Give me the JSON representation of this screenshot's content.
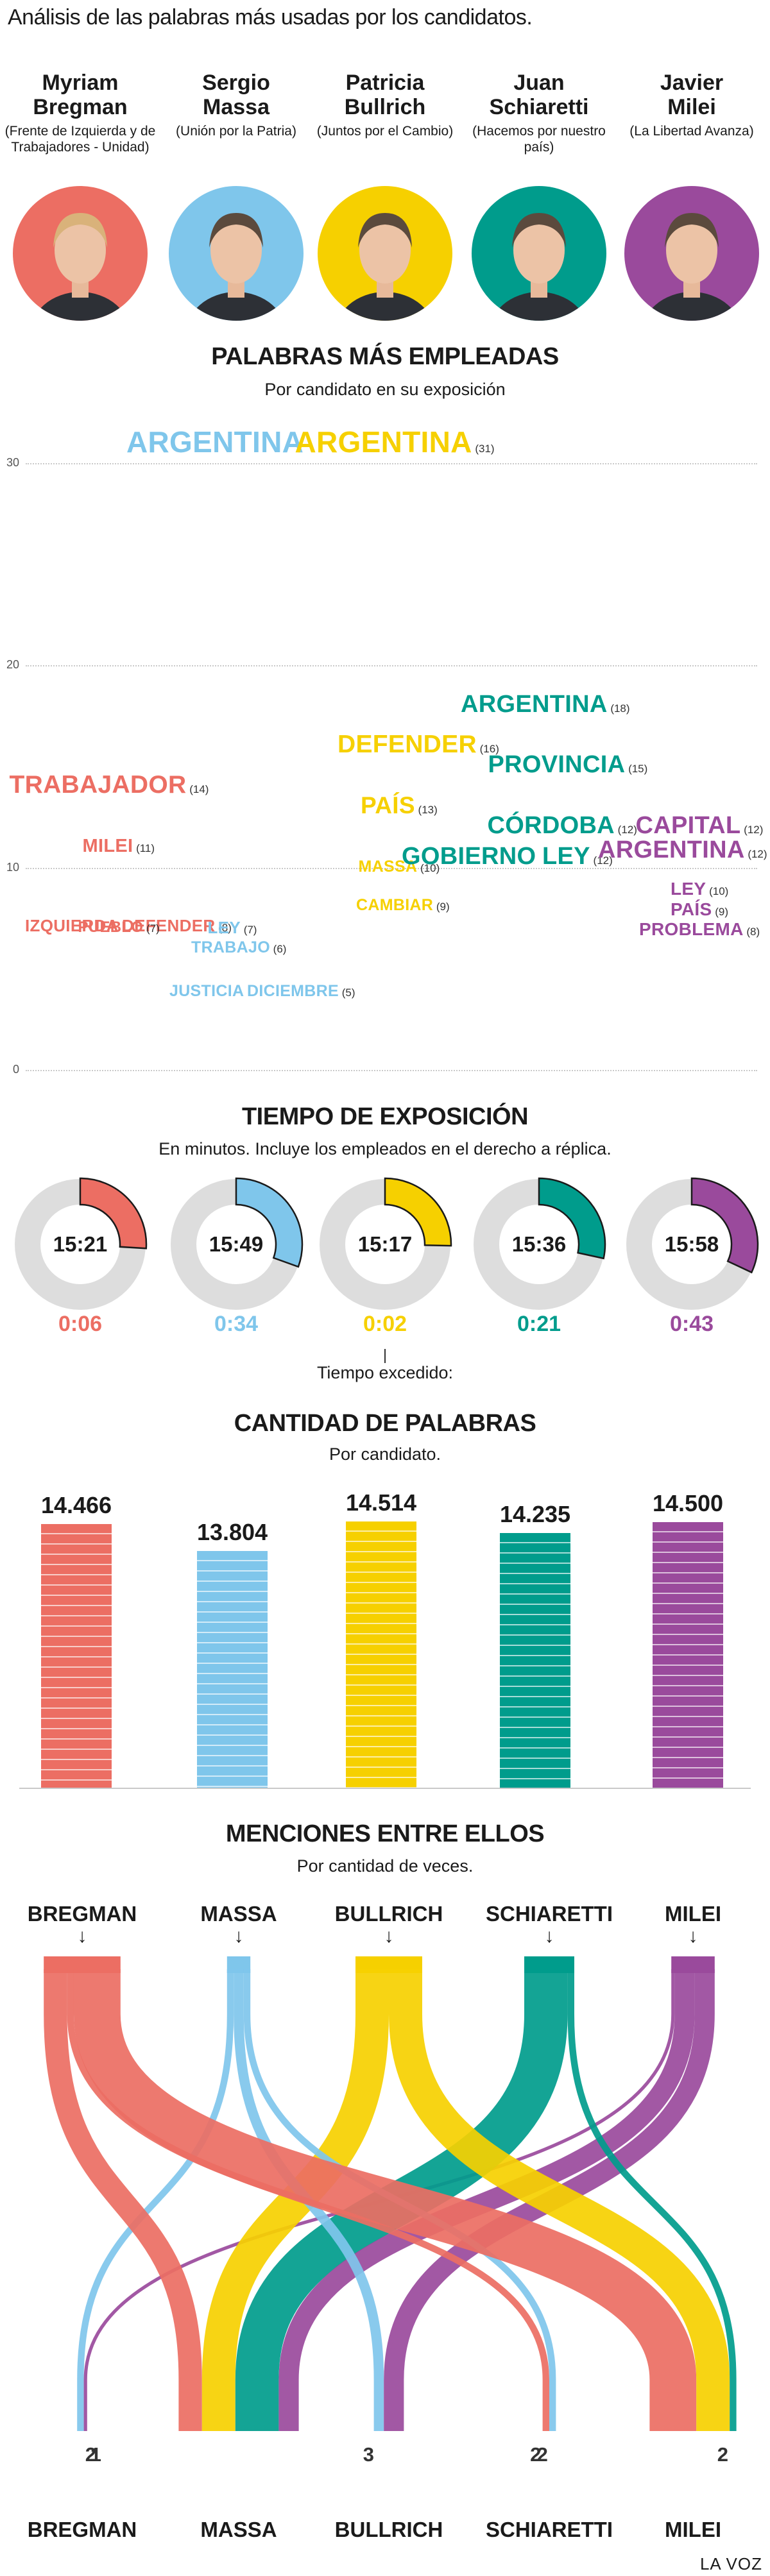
{
  "intro": "Análisis de las palabras más usadas por los candidatos.",
  "candidates": [
    {
      "key": "bregman",
      "name_line1": "Myriam",
      "name_line2": "Bregman",
      "party": "(Frente de Izquierda y de Trabajadores - Unidad)",
      "color": "#ec6e63"
    },
    {
      "key": "massa",
      "name_line1": "Sergio",
      "name_line2": "Massa",
      "party": "(Unión por la Patria)",
      "color": "#7fc6eb"
    },
    {
      "key": "bullrich",
      "name_line1": "Patricia",
      "name_line2": "Bullrich",
      "party": "(Juntos por el Cambio)",
      "color": "#f6d000"
    },
    {
      "key": "schiaretti",
      "name_line1": "Juan",
      "name_line2": "Schiaretti",
      "party": "(Hacemos por nuestro país)",
      "color": "#009c8c"
    },
    {
      "key": "milei",
      "name_line1": "Javier",
      "name_line2": "Milei",
      "party": "(La Libertad Avanza)",
      "color": "#9a4a9c"
    }
  ],
  "words_section": {
    "title": "PALABRAS MÁS EMPLEADAS",
    "subtitle": "Por candidato en su exposición",
    "axis_ticks": [
      "0",
      "10",
      "20",
      "30"
    ]
  },
  "chart_data": [
    {
      "type": "scatter",
      "title": "PALABRAS MÁS EMPLEADAS",
      "subtitle": "Por candidato en su exposición",
      "ylim": [
        0,
        30
      ],
      "yticks": [
        0,
        10,
        20,
        30
      ],
      "series": [
        {
          "name": "Bregman",
          "points": [
            {
              "word": "TRABAJADOR",
              "count": 14
            },
            {
              "word": "MILEI",
              "count": 11
            },
            {
              "word": "IZQUIERDA",
              "count": 8
            },
            {
              "word": "DEFENDER",
              "count": 8
            },
            {
              "word": "PUEBLO",
              "count": 7
            }
          ]
        },
        {
          "name": "Massa",
          "points": [
            {
              "word": "ARGENTINA",
              "count": 31
            },
            {
              "word": "LEY",
              "count": 7
            },
            {
              "word": "TRABAJO",
              "count": 6
            },
            {
              "word": "JUSTICIA",
              "count": 5
            },
            {
              "word": "DICIEMBRE",
              "count": 5
            }
          ]
        },
        {
          "name": "Bullrich",
          "points": [
            {
              "word": "ARGENTINA",
              "count": 31
            },
            {
              "word": "DEFENDER",
              "count": 16
            },
            {
              "word": "PAÍS",
              "count": 13
            },
            {
              "word": "MASSA",
              "count": 10
            },
            {
              "word": "CAMBIAR",
              "count": 9
            }
          ]
        },
        {
          "name": "Schiaretti",
          "points": [
            {
              "word": "ARGENTINA",
              "count": 18
            },
            {
              "word": "PROVINCIA",
              "count": 15
            },
            {
              "word": "CÓRDOBA",
              "count": 12
            },
            {
              "word": "GOBIERNO",
              "count": 12
            },
            {
              "word": "LEY",
              "count": 12
            }
          ]
        },
        {
          "name": "Milei",
          "points": [
            {
              "word": "CAPITAL",
              "count": 12
            },
            {
              "word": "ARGENTINA",
              "count": 12
            },
            {
              "word": "LEY",
              "count": 10
            },
            {
              "word": "PAÍS",
              "count": 9
            },
            {
              "word": "PROBLEMA",
              "count": 8
            }
          ]
        }
      ]
    },
    {
      "type": "pie",
      "title": "TIEMPO DE EXPOSICIÓN",
      "subtitle": "En minutos. Incluye los empleados en el derecho a réplica.",
      "categories": [
        "Bregman",
        "Massa",
        "Bullrich",
        "Schiaretti",
        "Milei"
      ],
      "exposure_time": [
        "15:21",
        "15:49",
        "15:17",
        "15:36",
        "15:58"
      ],
      "time_exceeded": [
        "0:06",
        "0:34",
        "0:02",
        "0:21",
        "0:43"
      ],
      "annotation": "Tiempo excedido:"
    },
    {
      "type": "bar",
      "title": "CANTIDAD DE PALABRAS",
      "subtitle": "Por candidato.",
      "categories": [
        "Bregman",
        "Massa",
        "Bullrich",
        "Schiaretti",
        "Milei"
      ],
      "values": [
        14466,
        13804,
        14514,
        14235,
        14500
      ],
      "value_labels": [
        "14.466",
        "13.804",
        "14.514",
        "14.235",
        "14.500"
      ]
    },
    {
      "type": "sankey",
      "title": "MENCIONES ENTRE ELLOS",
      "subtitle": "Por cantidad de veces.",
      "sources": [
        "BREGMAN",
        "MASSA",
        "BULLRICH",
        "SCHIARETTI",
        "MILEI"
      ],
      "targets": [
        "BREGMAN",
        "MASSA",
        "BULLRICH",
        "SCHIARETTI",
        "MILEI"
      ],
      "flows": [
        {
          "from": "MASSA",
          "to": "BREGMAN",
          "value": 2
        },
        {
          "from": "MILEI",
          "to": "BREGMAN",
          "value": 1
        },
        {
          "from": "BREGMAN",
          "to": "MASSA",
          "value": 7
        },
        {
          "from": "BULLRICH",
          "to": "MASSA",
          "value": 10
        },
        {
          "from": "SCHIARETTI",
          "to": "MASSA",
          "value": 13
        },
        {
          "from": "MILEI",
          "to": "MASSA",
          "value": 6
        },
        {
          "from": "MASSA",
          "to": "BULLRICH",
          "value": 3
        },
        {
          "from": "MILEI",
          "to": "BULLRICH",
          "value": 6
        },
        {
          "from": "BREGMAN",
          "to": "SCHIARETTI",
          "value": 2
        },
        {
          "from": "MASSA",
          "to": "SCHIARETTI",
          "value": 2
        },
        {
          "from": "BREGMAN",
          "to": "MILEI",
          "value": 14
        },
        {
          "from": "BULLRICH",
          "to": "MILEI",
          "value": 10
        },
        {
          "from": "SCHIARETTI",
          "to": "MILEI",
          "value": 2
        }
      ]
    }
  ],
  "exposure_section": {
    "title": "TIEMPO DE EXPOSICIÓN",
    "subtitle": "En minutos. Incluye los empleados en el derecho a réplica.",
    "exceeded_label": "Tiempo excedido:"
  },
  "words_count_section": {
    "title": "CANTIDAD DE PALABRAS",
    "subtitle": "Por candidato."
  },
  "mentions_section": {
    "title": "MENCIONES ENTRE ELLOS",
    "subtitle": "Por cantidad de veces.",
    "arrow_icon": "down-arrow-icon"
  },
  "footer": "LA VOZ"
}
